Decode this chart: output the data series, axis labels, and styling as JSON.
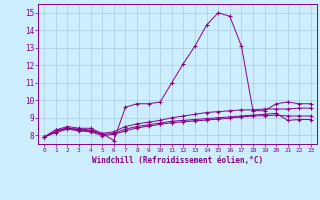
{
  "xlabel": "Windchill (Refroidissement éolien,°C)",
  "bg_color": "#cceeff",
  "grid_color": "#aaccdd",
  "line_color": "#880088",
  "xlim": [
    -0.5,
    23.5
  ],
  "ylim": [
    7.5,
    15.5
  ],
  "xticks": [
    0,
    1,
    2,
    3,
    4,
    5,
    6,
    7,
    8,
    9,
    10,
    11,
    12,
    13,
    14,
    15,
    16,
    17,
    18,
    19,
    20,
    21,
    22,
    23
  ],
  "yticks": [
    8,
    9,
    10,
    11,
    12,
    13,
    14,
    15
  ],
  "line1": [
    7.9,
    8.3,
    8.5,
    8.4,
    8.4,
    8.1,
    7.7,
    9.6,
    9.8,
    9.8,
    9.9,
    11.0,
    12.1,
    13.1,
    14.3,
    15.0,
    14.8,
    13.1,
    9.4,
    9.4,
    9.8,
    9.9,
    9.8,
    9.8
  ],
  "line2": [
    7.9,
    8.3,
    8.4,
    8.35,
    8.3,
    8.1,
    8.2,
    8.5,
    8.65,
    8.75,
    8.85,
    9.0,
    9.1,
    9.2,
    9.3,
    9.35,
    9.4,
    9.45,
    9.45,
    9.5,
    9.5,
    9.5,
    9.55,
    9.55
  ],
  "line3": [
    7.9,
    8.2,
    8.4,
    8.3,
    8.25,
    8.05,
    8.1,
    8.35,
    8.5,
    8.6,
    8.7,
    8.8,
    8.85,
    8.9,
    8.95,
    9.0,
    9.05,
    9.1,
    9.15,
    9.2,
    9.25,
    8.85,
    8.9,
    8.9
  ],
  "line4": [
    7.9,
    8.15,
    8.35,
    8.25,
    8.2,
    7.98,
    8.05,
    8.25,
    8.42,
    8.52,
    8.62,
    8.72,
    8.77,
    8.82,
    8.87,
    8.92,
    8.97,
    9.05,
    9.1,
    9.12,
    9.15,
    9.1,
    9.1,
    9.1
  ]
}
